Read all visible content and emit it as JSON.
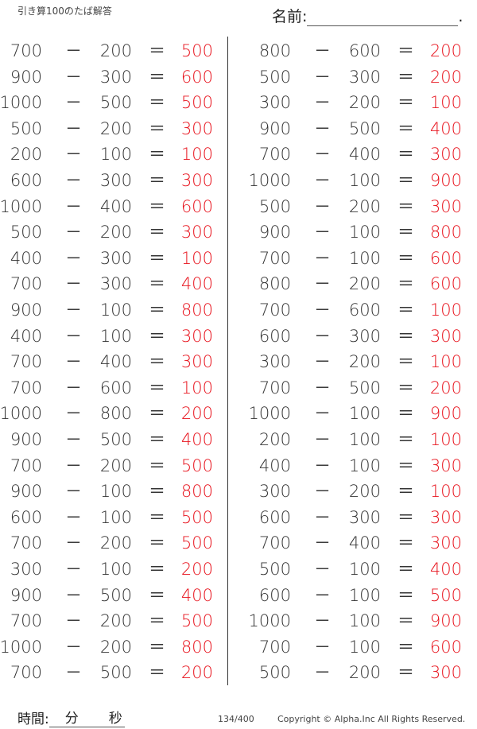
{
  "header": {
    "title": "引き算100のたば解答",
    "name_label": "名前:",
    "name_end": "."
  },
  "operators": {
    "minus": "－",
    "equals": "＝"
  },
  "colors": {
    "answer": "#e8141e",
    "text": "#333333"
  },
  "left": [
    [
      "700",
      "200",
      "500"
    ],
    [
      "900",
      "300",
      "600"
    ],
    [
      "1000",
      "500",
      "500"
    ],
    [
      "500",
      "200",
      "300"
    ],
    [
      "200",
      "100",
      "100"
    ],
    [
      "600",
      "300",
      "300"
    ],
    [
      "1000",
      "400",
      "600"
    ],
    [
      "500",
      "200",
      "300"
    ],
    [
      "400",
      "300",
      "100"
    ],
    [
      "700",
      "300",
      "400"
    ],
    [
      "900",
      "100",
      "800"
    ],
    [
      "400",
      "100",
      "300"
    ],
    [
      "700",
      "400",
      "300"
    ],
    [
      "700",
      "600",
      "100"
    ],
    [
      "1000",
      "800",
      "200"
    ],
    [
      "900",
      "500",
      "400"
    ],
    [
      "700",
      "200",
      "500"
    ],
    [
      "900",
      "100",
      "800"
    ],
    [
      "600",
      "100",
      "500"
    ],
    [
      "700",
      "200",
      "500"
    ],
    [
      "300",
      "100",
      "200"
    ],
    [
      "900",
      "500",
      "400"
    ],
    [
      "700",
      "200",
      "500"
    ],
    [
      "1000",
      "200",
      "800"
    ],
    [
      "700",
      "500",
      "200"
    ]
  ],
  "right": [
    [
      "800",
      "600",
      "200"
    ],
    [
      "500",
      "300",
      "200"
    ],
    [
      "300",
      "200",
      "100"
    ],
    [
      "900",
      "500",
      "400"
    ],
    [
      "700",
      "400",
      "300"
    ],
    [
      "1000",
      "100",
      "900"
    ],
    [
      "500",
      "200",
      "300"
    ],
    [
      "900",
      "100",
      "800"
    ],
    [
      "700",
      "100",
      "600"
    ],
    [
      "800",
      "200",
      "600"
    ],
    [
      "700",
      "600",
      "100"
    ],
    [
      "600",
      "300",
      "300"
    ],
    [
      "300",
      "200",
      "100"
    ],
    [
      "700",
      "500",
      "200"
    ],
    [
      "1000",
      "100",
      "900"
    ],
    [
      "200",
      "100",
      "100"
    ],
    [
      "400",
      "100",
      "300"
    ],
    [
      "300",
      "200",
      "100"
    ],
    [
      "600",
      "300",
      "300"
    ],
    [
      "700",
      "400",
      "300"
    ],
    [
      "500",
      "100",
      "400"
    ],
    [
      "600",
      "100",
      "500"
    ],
    [
      "1000",
      "100",
      "900"
    ],
    [
      "700",
      "100",
      "600"
    ],
    [
      "500",
      "200",
      "300"
    ]
  ],
  "footer": {
    "time_label": "時間:",
    "minutes": "分",
    "seconds": "秒",
    "page": "134/400",
    "copyright": "Copyright ©  Alpha.Inc All Rights Reserved."
  }
}
